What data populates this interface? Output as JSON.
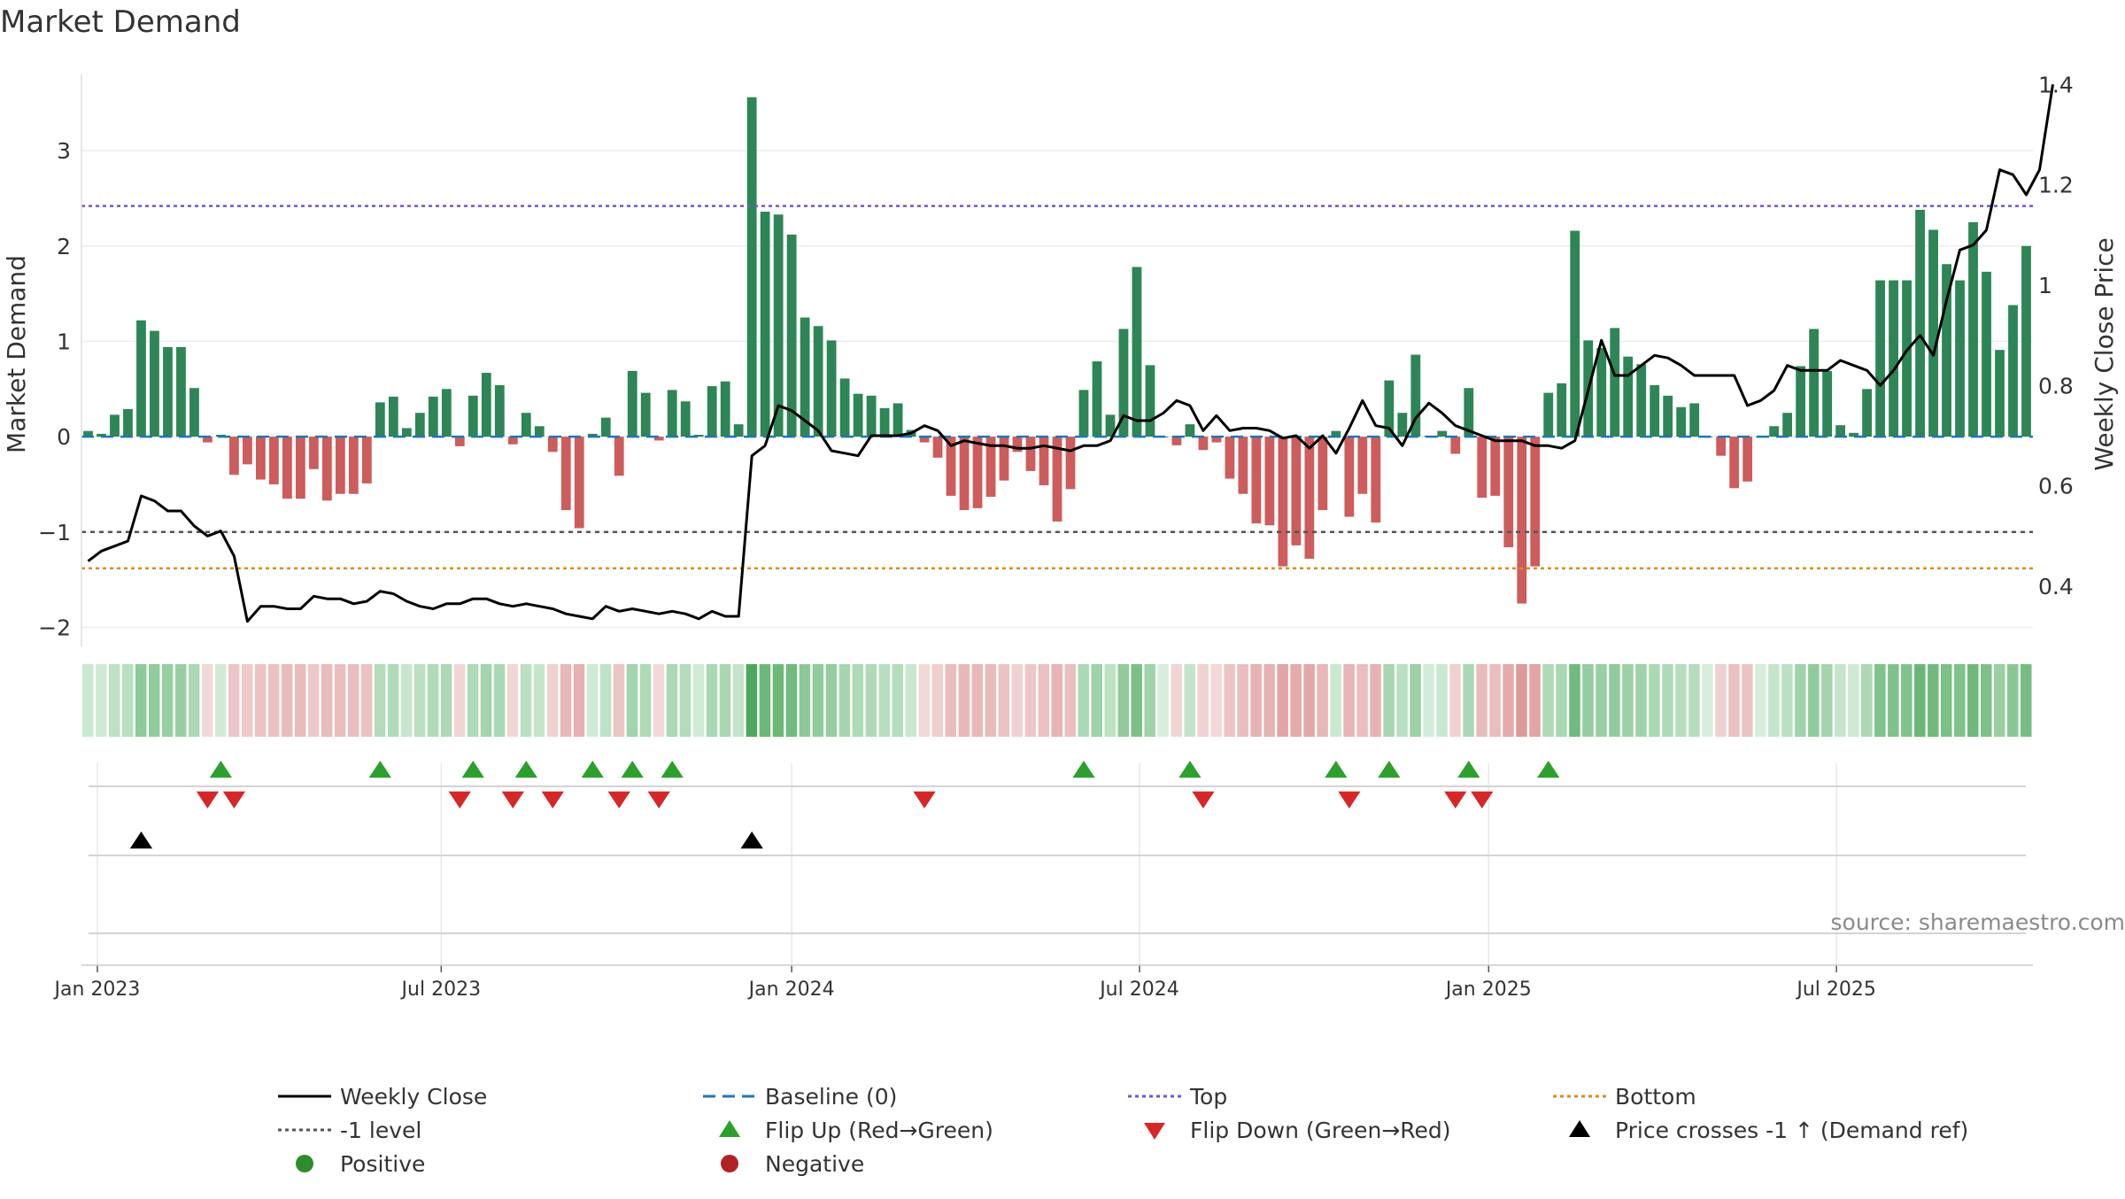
{
  "chart_data": {
    "type": "bar",
    "title": "Market Demand",
    "ylabel": "Market Demand",
    "y2label": "Weekly Close Price",
    "ylim": [
      -2.2,
      3.8
    ],
    "y2lim": [
      0.28,
      1.42
    ],
    "y_ticks": [
      "3",
      "2",
      "1",
      "0",
      "−1",
      "−2"
    ],
    "y2_ticks": [
      "1.4",
      "1.2",
      "1",
      "0.8",
      "0.6",
      "0.4"
    ],
    "x_ticks": [
      "Jan 2023",
      "Jul 2023",
      "Jan 2024",
      "Jul 2024",
      "Jan 2025",
      "Jul 2025"
    ],
    "top_level": 2.42,
    "bottom_level": -1.38,
    "minus_one_level": -1,
    "grid": true,
    "source": "source: sharemaestro.com",
    "series": [
      {
        "name": "Market Demand",
        "values": [
          0.06,
          0.03,
          0.23,
          0.29,
          1.22,
          1.11,
          0.94,
          0.94,
          0.51,
          -0.06,
          0.02,
          -0.4,
          -0.29,
          -0.45,
          -0.5,
          -0.65,
          -0.65,
          -0.34,
          -0.67,
          -0.6,
          -0.6,
          -0.49,
          0.36,
          0.42,
          0.09,
          0.25,
          0.42,
          0.5,
          -0.1,
          0.43,
          0.67,
          0.54,
          -0.08,
          0.25,
          0.11,
          -0.16,
          -0.77,
          -0.96,
          0.03,
          0.2,
          -0.41,
          0.69,
          0.46,
          -0.04,
          0.49,
          0.37,
          0.02,
          0.53,
          0.58,
          0.13,
          3.56,
          2.36,
          2.33,
          2.12,
          1.25,
          1.16,
          1.01,
          0.61,
          0.45,
          0.43,
          0.3,
          0.35,
          0.07,
          -0.06,
          -0.22,
          -0.62,
          -0.77,
          -0.75,
          -0.63,
          -0.46,
          -0.16,
          -0.36,
          -0.51,
          -0.89,
          -0.55,
          0.49,
          0.79,
          0.23,
          1.13,
          1.78,
          0.75,
          0.0,
          -0.09,
          0.13,
          -0.14,
          -0.06,
          -0.44,
          -0.6,
          -0.91,
          -0.93,
          -1.36,
          -1.14,
          -1.28,
          -0.77,
          0.06,
          -0.84,
          -0.6,
          -0.9,
          0.59,
          0.25,
          0.86,
          0.01,
          0.06,
          -0.18,
          0.51,
          -0.64,
          -0.62,
          -1.16,
          -1.75,
          -1.36,
          0.46,
          0.56,
          2.16,
          1.01,
          0.93,
          1.14,
          0.84,
          0.76,
          0.54,
          0.43,
          0.31,
          0.35,
          0.0,
          -0.2,
          -0.54,
          -0.47,
          0.0,
          0.11,
          0.25,
          0.74,
          1.13,
          0.69,
          0.12,
          0.04,
          0.5,
          1.64,
          1.64,
          1.64,
          2.38,
          2.17,
          1.81,
          1.64,
          2.25,
          1.73,
          0.91,
          1.38,
          2.0
        ]
      },
      {
        "name": "Weekly Close",
        "values": [
          0.45,
          0.47,
          0.48,
          0.49,
          0.58,
          0.57,
          0.55,
          0.55,
          0.52,
          0.5,
          0.51,
          0.46,
          0.33,
          0.36,
          0.36,
          0.355,
          0.355,
          0.38,
          0.375,
          0.375,
          0.365,
          0.37,
          0.39,
          0.385,
          0.37,
          0.36,
          0.355,
          0.365,
          0.365,
          0.375,
          0.375,
          0.365,
          0.36,
          0.365,
          0.36,
          0.355,
          0.345,
          0.34,
          0.335,
          0.36,
          0.35,
          0.355,
          0.35,
          0.345,
          0.35,
          0.345,
          0.335,
          0.35,
          0.34,
          0.34,
          0.66,
          0.68,
          0.76,
          0.75,
          0.73,
          0.71,
          0.67,
          0.665,
          0.66,
          0.7,
          0.7,
          0.7,
          0.705,
          0.72,
          0.71,
          0.68,
          0.69,
          0.685,
          0.68,
          0.68,
          0.675,
          0.675,
          0.68,
          0.675,
          0.67,
          0.68,
          0.68,
          0.69,
          0.74,
          0.73,
          0.73,
          0.745,
          0.77,
          0.76,
          0.71,
          0.74,
          0.71,
          0.715,
          0.715,
          0.71,
          0.695,
          0.7,
          0.675,
          0.7,
          0.665,
          0.715,
          0.77,
          0.72,
          0.715,
          0.68,
          0.735,
          0.765,
          0.745,
          0.72,
          0.71,
          0.7,
          0.69,
          0.69,
          0.69,
          0.68,
          0.68,
          0.675,
          0.69,
          0.79,
          0.89,
          0.82,
          0.82,
          0.84,
          0.86,
          0.855,
          0.84,
          0.82,
          0.82,
          0.82,
          0.82,
          0.76,
          0.77,
          0.79,
          0.84,
          0.83,
          0.83,
          0.83,
          0.85,
          0.84,
          0.83,
          0.8,
          0.83,
          0.87,
          0.9,
          0.86,
          0.97,
          1.07,
          1.08,
          1.11,
          1.23,
          1.22,
          1.18,
          1.23,
          1.4
        ]
      }
    ],
    "flip_up_labels": [
      "Flip Up (Red→Green)"
    ],
    "legend": [
      {
        "label": "Weekly Close",
        "kind": "line",
        "color": "#000000"
      },
      {
        "label": "Baseline (0)",
        "kind": "dash",
        "color": "#1f77b4"
      },
      {
        "label": "Top",
        "kind": "dot",
        "color": "#6a5acd"
      },
      {
        "label": "Bottom",
        "kind": "dot",
        "color": "#e08a1e"
      },
      {
        "label": "-1 level",
        "kind": "dot",
        "color": "#555555"
      },
      {
        "label": "Flip Up (Red→Green)",
        "kind": "tri-up",
        "color": "#2ca02c"
      },
      {
        "label": "Flip Down (Green→Red)",
        "kind": "tri-down",
        "color": "#d62728"
      },
      {
        "label": "Price crosses -1 ↑ (Demand ref)",
        "kind": "tri-up",
        "color": "#000000"
      },
      {
        "label": "Positive",
        "kind": "circle",
        "color": "#2e8b2e"
      },
      {
        "label": "Negative",
        "kind": "circle",
        "color": "#b22222"
      }
    ],
    "colors": {
      "positive_bar": "#2e8555",
      "negative_bar": "#cd5c5c",
      "flip_up": "#2ca02c",
      "flip_down": "#d62728",
      "cross": "#000000"
    }
  }
}
